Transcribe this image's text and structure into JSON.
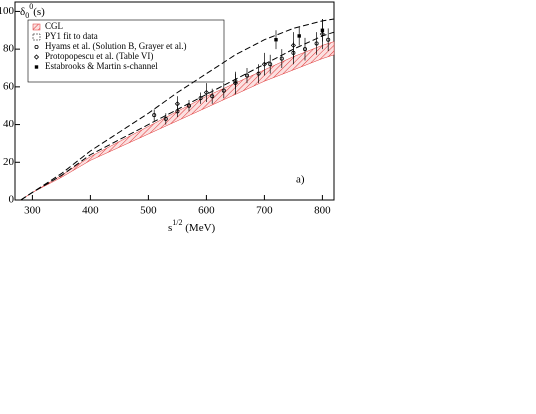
{
  "chart_data": {
    "type": "line",
    "ylabel": {
      "base": "δ",
      "sub": "0",
      "sup": "0",
      "tail": "(s)"
    },
    "xlabel": {
      "base": "s",
      "sup": "1/2",
      "tail": " (MeV)"
    },
    "annotation": "a)",
    "xlim": [
      270,
      820
    ],
    "ylim": [
      0,
      105
    ],
    "xticks": [
      300,
      400,
      500,
      600,
      700,
      800
    ],
    "yticks": [
      0,
      20,
      40,
      60,
      80,
      100
    ],
    "legend": "upper left",
    "x": [
      280,
      300,
      350,
      400,
      450,
      500,
      550,
      600,
      650,
      700,
      750,
      800,
      820
    ],
    "series": [
      {
        "name": "CGL",
        "kind": "band",
        "color": "#e03030",
        "lower": [
          0,
          4,
          12,
          21,
          28,
          35,
          42,
          49,
          56,
          63,
          69,
          75,
          77
        ],
        "upper": [
          0,
          4,
          13,
          23,
          31,
          39,
          47,
          55,
          62,
          69,
          76,
          82,
          84
        ]
      },
      {
        "name": "PY1 fit  to data",
        "kind": "dashed",
        "color": "#000000",
        "lower": [
          0,
          4,
          13,
          24,
          32,
          40,
          48,
          56,
          64,
          72,
          80,
          87,
          89
        ],
        "upper": [
          0,
          4,
          14,
          26,
          36,
          46,
          57,
          67,
          77,
          85,
          91,
          95,
          96
        ]
      },
      {
        "name": "Hyams et al. (Solution B, Grayer et al.)",
        "kind": "points",
        "marker": "circle",
        "color": "#000000",
        "x": [
          510,
          530,
          550,
          570,
          590,
          610,
          630,
          650,
          670,
          690,
          710,
          730,
          750,
          770,
          790,
          810
        ],
        "values": [
          45,
          43,
          47,
          50,
          54,
          55,
          58,
          63,
          66,
          67,
          72,
          75,
          78,
          80,
          83,
          85
        ],
        "errors": [
          3,
          3,
          3,
          3,
          3,
          4,
          4,
          4,
          4,
          5,
          5,
          5,
          6,
          6,
          6,
          6
        ]
      },
      {
        "name": "Protopopescu et al.  (Table VI)",
        "kind": "points",
        "marker": "diamond",
        "color": "#000000",
        "x": [
          550,
          600,
          650,
          700,
          750,
          800
        ],
        "values": [
          51,
          57,
          62,
          72,
          82,
          88
        ],
        "errors": [
          4,
          5,
          6,
          6,
          7,
          8
        ]
      },
      {
        "name": "Estabrooks & Martin s-channel",
        "kind": "points",
        "marker": "square",
        "color": "#000000",
        "x": [
          720,
          760,
          800
        ],
        "values": [
          85,
          87,
          90
        ],
        "errors": [
          5,
          5,
          6
        ]
      }
    ]
  }
}
